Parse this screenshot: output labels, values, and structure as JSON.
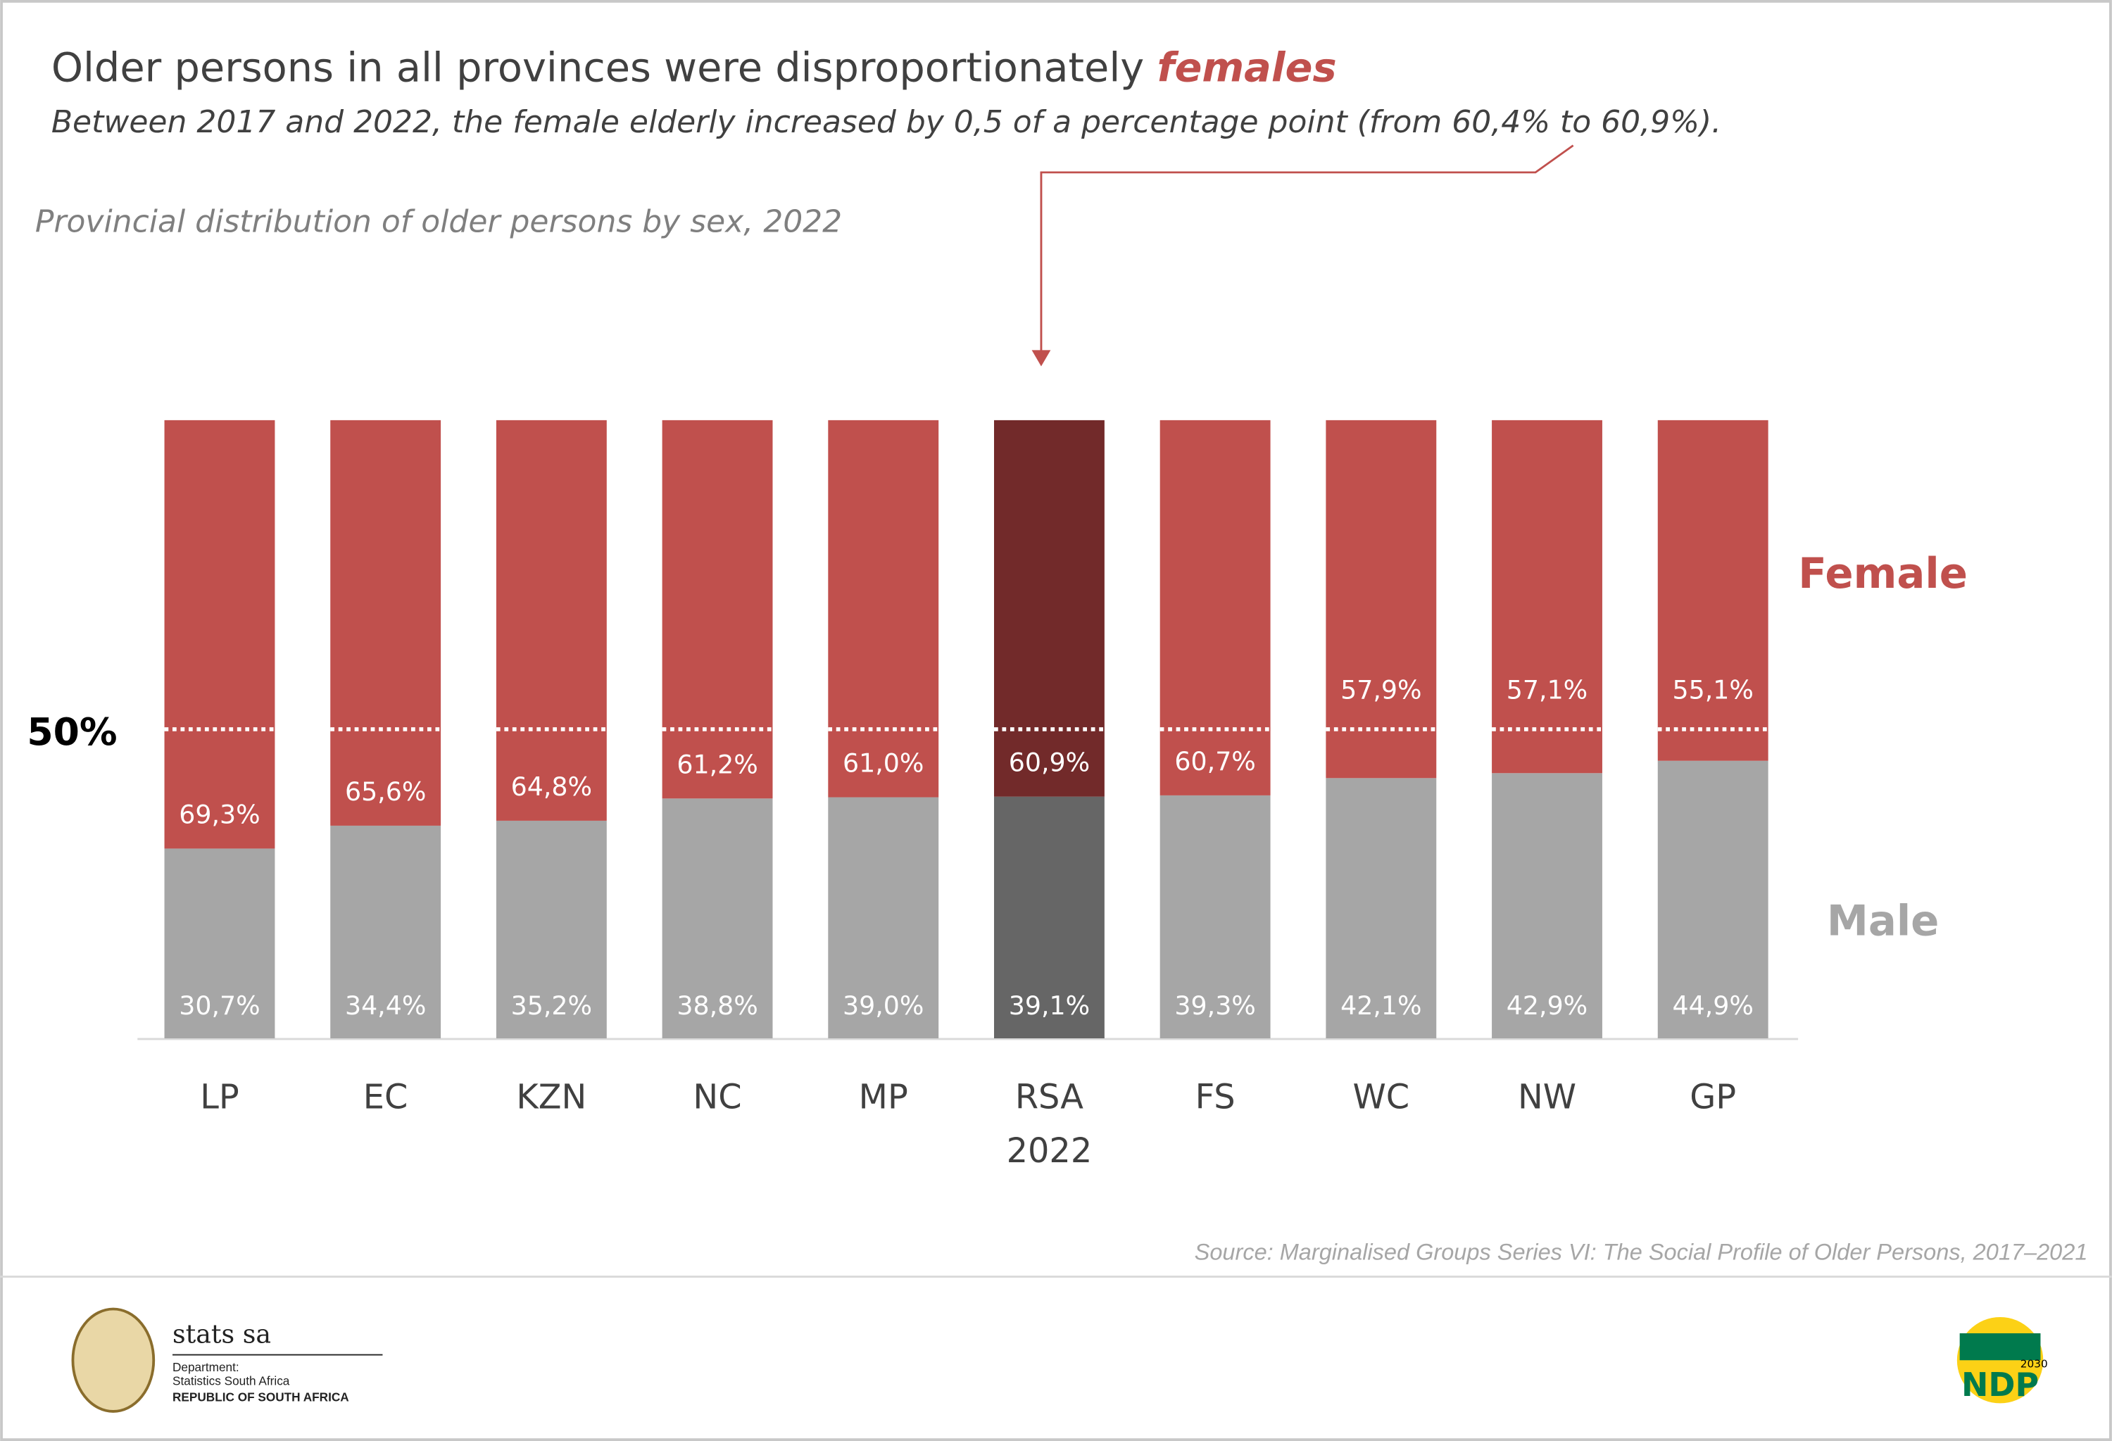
{
  "chart_data": {
    "type": "stacked_bar",
    "title": "Older persons in all provinces were disproportionately",
    "title_emphasis": "females",
    "subtitle": "Between 2017 and 2022, the female elderly increased by 0,5 of a percentage point (from 60,4% to 60,9%).",
    "chart_title": "Provincial distribution of older persons by sex, 2022",
    "categories": [
      "LP",
      "EC",
      "KZN",
      "NC",
      "MP",
      "RSA 2022",
      "FS",
      "WC",
      "NW",
      "GP"
    ],
    "series": [
      {
        "name": "Male",
        "legend_color": "#a6a6a6",
        "color": [
          "#a6a6a6",
          "#a6a6a6",
          "#a6a6a6",
          "#a6a6a6",
          "#a6a6a6",
          "#666666",
          "#a6a6a6",
          "#a6a6a6",
          "#a6a6a6",
          "#a6a6a6"
        ],
        "values": [
          30.7,
          34.4,
          35.2,
          38.8,
          39.0,
          39.1,
          39.3,
          42.1,
          42.9,
          44.9
        ],
        "value_labels": [
          "30,7%",
          "34,4%",
          "35,2%",
          "38,8%",
          "39,0%",
          "39,1%",
          "39,3%",
          "42,1%",
          "42,9%",
          "44,9%"
        ]
      },
      {
        "name": "Female",
        "legend_color": "#c0504d",
        "color": [
          "#c0504d",
          "#c0504d",
          "#c0504d",
          "#c0504d",
          "#c0504d",
          "#722a2a",
          "#c0504d",
          "#c0504d",
          "#c0504d",
          "#c0504d"
        ],
        "values": [
          69.3,
          65.6,
          64.8,
          61.2,
          61.0,
          60.9,
          60.7,
          57.9,
          57.1,
          55.1
        ],
        "value_labels": [
          "69,3%",
          "65,6%",
          "64,8%",
          "61,2%",
          "61,0%",
          "60,9%",
          "60,7%",
          "57,9%",
          "57,1%",
          "55,1%"
        ]
      }
    ],
    "ylim": [
      0,
      100
    ],
    "reference_line": {
      "value": 50,
      "label": "50%"
    },
    "source": "Source: Marginalised Groups Series VI: The Social Profile of Older Persons, 2017–2021"
  },
  "footer": {
    "brand": "stats sa",
    "department": "Department:",
    "agency": "Statistics South Africa",
    "country": "REPUBLIC OF SOUTH AFRICA",
    "plan_logo": "NDP",
    "plan_year": "2030"
  }
}
